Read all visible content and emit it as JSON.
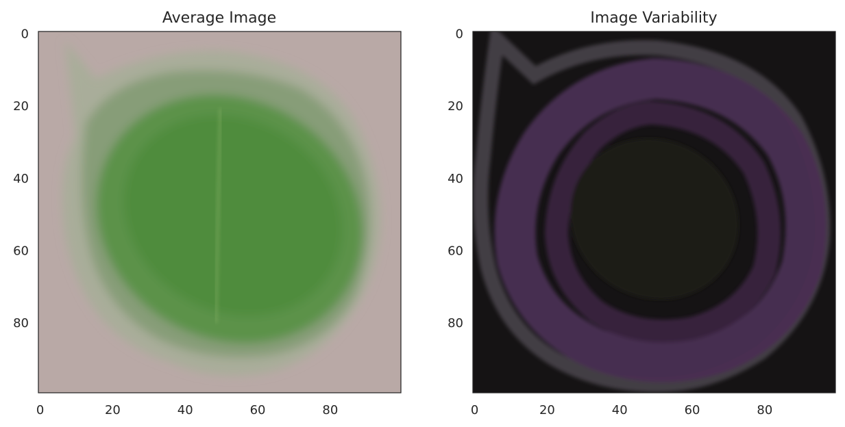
{
  "figure": {
    "background": "#ffffff",
    "text_color": "#262626"
  },
  "chart_data": [
    {
      "type": "heatmap",
      "title": "Average Image",
      "xlabel": "",
      "ylabel": "",
      "xlim": [
        -0.5,
        99.5
      ],
      "ylim": [
        99.5,
        -0.5
      ],
      "xticks": [
        0,
        20,
        40,
        60,
        80
      ],
      "yticks": [
        0,
        20,
        40,
        60,
        80
      ],
      "xtick_labels": [
        "0",
        "20",
        "40",
        "60",
        "80"
      ],
      "ytick_labels": [
        "0",
        "20",
        "40",
        "60",
        "80"
      ],
      "image_shape": [
        100,
        100,
        3
      ],
      "grid": false,
      "colors": {
        "background": "#b9a9a6",
        "leaf_outer": "#a9ad9a",
        "leaf_mid": "#879d78",
        "leaf_inner": "#5b9248",
        "leaf_core": "#4f8c3d",
        "midrib": "#7aa85d"
      }
    },
    {
      "type": "heatmap",
      "title": "Image Variability",
      "xlabel": "",
      "ylabel": "",
      "xlim": [
        -0.5,
        99.5
      ],
      "ylim": [
        99.5,
        -0.5
      ],
      "xticks": [
        0,
        20,
        40,
        60,
        80
      ],
      "yticks": [
        0,
        20,
        40,
        60,
        80
      ],
      "xtick_labels": [
        "0",
        "20",
        "40",
        "60",
        "80"
      ],
      "ytick_labels": [
        "0",
        "20",
        "40",
        "60",
        "80"
      ],
      "image_shape": [
        100,
        100,
        3
      ],
      "grid": false,
      "colors": {
        "background": "#151314",
        "ring_gray": "#4a464c",
        "ring_purple": "#4a2e52",
        "ring_inner": "#3a2541",
        "center": "#1c1a17"
      }
    }
  ]
}
